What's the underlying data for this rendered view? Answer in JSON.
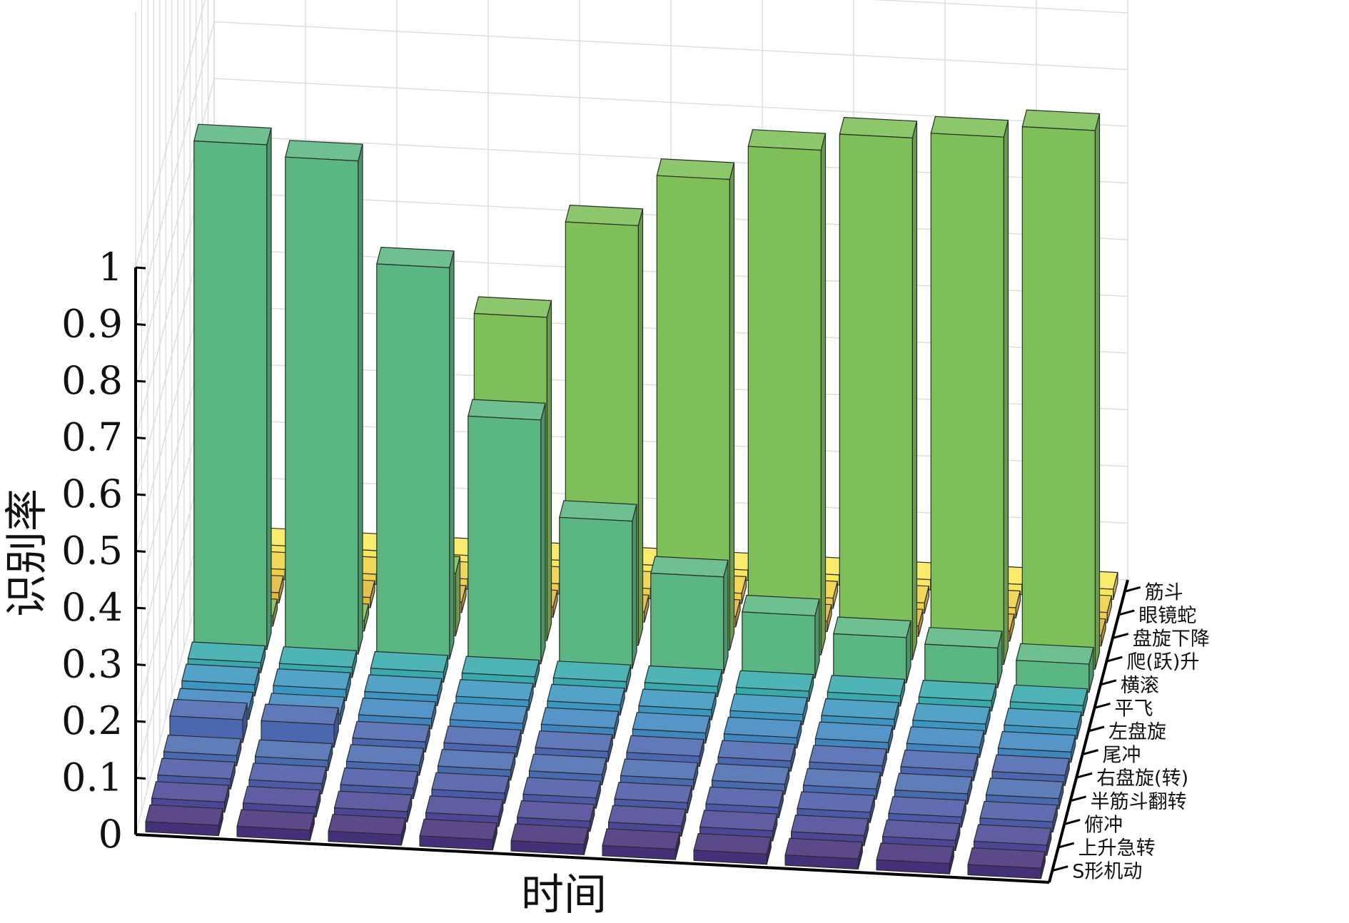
{
  "chart_data": {
    "type": "bar3d",
    "xlabel": "时间",
    "zlabel": "识别率",
    "zlim": [
      0,
      1
    ],
    "z_ticks": [
      "0",
      "0.1",
      "0.2",
      "0.3",
      "0.4",
      "0.5",
      "0.6",
      "0.7",
      "0.8",
      "0.9",
      "1"
    ],
    "x_categories": [
      "",
      "",
      "",
      "",
      "",
      "",
      "",
      "",
      "",
      ""
    ],
    "y_categories": [
      "S形机动",
      "上升急转",
      "俯冲",
      "半筋斗翻转",
      "右盘旋(转)",
      "尾冲",
      "左盘旋",
      "平飞",
      "横滚",
      "爬(跃)升",
      "盘旋下降",
      "眼镜蛇",
      "筋斗"
    ],
    "grid": true,
    "series": [
      {
        "name": "S形机动",
        "color": "#45307a",
        "values": [
          0,
          0,
          0,
          0,
          0,
          0,
          0,
          0,
          0,
          0
        ]
      },
      {
        "name": "上升急转",
        "color": "#4b4796",
        "values": [
          0,
          0,
          0,
          0,
          0,
          0,
          0,
          0,
          0,
          0
        ]
      },
      {
        "name": "俯冲",
        "color": "#4a5aa6",
        "values": [
          0,
          0,
          0,
          0,
          0,
          0,
          0,
          0,
          0,
          0
        ]
      },
      {
        "name": "半筋斗翻转",
        "color": "#486bb0",
        "values": [
          0,
          0,
          0,
          0,
          0,
          0,
          0,
          0,
          0,
          0
        ]
      },
      {
        "name": "右盘旋(转)",
        "color": "#4b67b0",
        "values": [
          0.04,
          0.04,
          0,
          0,
          0,
          0,
          0,
          0,
          0,
          0
        ]
      },
      {
        "name": "尾冲",
        "color": "#3f86bf",
        "values": [
          0,
          0,
          0,
          0,
          0,
          0,
          0,
          0,
          0,
          0
        ]
      },
      {
        "name": "左盘旋",
        "color": "#3b97c1",
        "values": [
          0.02,
          0.02,
          0.01,
          0,
          0,
          0,
          0,
          0,
          0,
          0
        ]
      },
      {
        "name": "平飞",
        "color": "#37aaab",
        "values": [
          0.01,
          0,
          0,
          0,
          0,
          0,
          0,
          0,
          0,
          0
        ]
      },
      {
        "name": "横滚",
        "color": "#5ab782",
        "values": [
          0.89,
          0.87,
          0.69,
          0.43,
          0.26,
          0.17,
          0.11,
          0.08,
          0.07,
          0.05
        ]
      },
      {
        "name": "爬(跃)升",
        "color": "#7ebf58",
        "values": [
          0,
          0,
          0.11,
          0.57,
          0.74,
          0.83,
          0.89,
          0.92,
          0.93,
          0.95
        ]
      },
      {
        "name": "盘旋下降",
        "color": "#e0b83a",
        "values": [
          0,
          0,
          0,
          0,
          0,
          0,
          0,
          0,
          0,
          0.01
        ]
      },
      {
        "name": "眼镜蛇",
        "color": "#f0d040",
        "values": [
          0,
          0,
          0,
          0,
          0,
          0,
          0,
          0,
          0,
          0.01
        ]
      },
      {
        "name": "筋斗",
        "color": "#f8e858",
        "values": [
          0,
          0,
          0,
          0,
          0,
          0,
          0,
          0,
          0,
          0.01
        ]
      }
    ]
  }
}
